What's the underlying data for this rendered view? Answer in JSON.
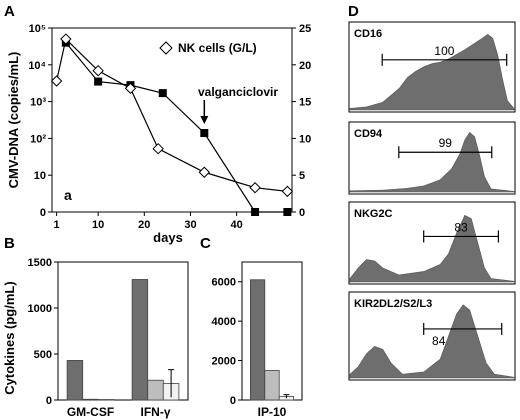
{
  "panels": {
    "A": "A",
    "B": "B",
    "C": "C",
    "D": "D"
  },
  "chart_data": [
    {
      "panel": "A",
      "type": "line",
      "annotation": "a",
      "xlabel": "days",
      "ylabel_left": "CMV-DNA (copies/mL)",
      "ylabel_right": "",
      "y_scale_left": "symlog",
      "x_ticks": [
        1,
        10,
        20,
        30,
        40
      ],
      "y_left_ticks": [
        "0",
        "10",
        "10²",
        "10³",
        "10⁴",
        "10⁵"
      ],
      "y_left_tick_values": [
        0,
        10,
        100,
        1000,
        10000,
        100000
      ],
      "y_right_ticks": [
        0,
        5,
        10,
        15,
        20,
        25
      ],
      "ylim_right": [
        0,
        25
      ],
      "xlim": [
        0,
        52
      ],
      "legend": "NK cells (G/L)",
      "legend_position": "top-right",
      "arrow_label": "valganciclovir",
      "arrow_x": 33,
      "series": [
        {
          "axis": "left",
          "marker": "filled-square",
          "points": [
            [
              3,
              40000
            ],
            [
              10,
              3500
            ],
            [
              17,
              2800
            ],
            [
              24,
              1700
            ],
            [
              33,
              140
            ],
            [
              44,
              0
            ],
            [
              51,
              0
            ]
          ]
        },
        {
          "name": "NK cells (G/L)",
          "axis": "right",
          "marker": "open-diamond",
          "points": [
            [
              1,
              17.8
            ],
            [
              3,
              23.5
            ],
            [
              10,
              19.2
            ],
            [
              17,
              16.8
            ],
            [
              23,
              8.6
            ],
            [
              33,
              5.4
            ],
            [
              44,
              3.3
            ],
            [
              51,
              2.8
            ]
          ]
        }
      ]
    },
    {
      "panel": "B",
      "type": "bar",
      "ylabel": "Cytokines (pg/mL)",
      "categories": [
        "GM-CSF",
        "IFN-γ"
      ],
      "ylim": [
        0,
        1500
      ],
      "y_ticks": [
        0,
        500,
        1000,
        1500
      ],
      "series": [
        {
          "values": [
            430,
            1310
          ],
          "color": "#6e6e6e",
          "err": [
            0,
            0
          ]
        },
        {
          "values": [
            8,
            215
          ],
          "color": "#bdbdbd",
          "err": [
            0,
            0
          ]
        },
        {
          "values": [
            5,
            180
          ],
          "color": "#f2f2f2",
          "err": [
            0,
            150
          ]
        }
      ]
    },
    {
      "panel": "C",
      "type": "bar",
      "categories": [
        "IP-10"
      ],
      "ylim": [
        0,
        7000
      ],
      "y_ticks": [
        0,
        2000,
        4000,
        6000
      ],
      "series": [
        {
          "values": [
            6100
          ],
          "color": "#6e6e6e",
          "err": [
            0
          ]
        },
        {
          "values": [
            1500
          ],
          "color": "#bdbdbd",
          "err": [
            0
          ]
        },
        {
          "values": [
            180
          ],
          "color": "#f2f2f2",
          "err": [
            90
          ]
        }
      ]
    },
    {
      "panel": "D",
      "type": "area",
      "histograms": [
        {
          "label": "CD16",
          "gate_value": "100",
          "gate_from": 0.2,
          "gate_to": 0.95,
          "profile": [
            [
              0,
              0.02
            ],
            [
              0.1,
              0.04
            ],
            [
              0.2,
              0.1
            ],
            [
              0.3,
              0.28
            ],
            [
              0.35,
              0.42
            ],
            [
              0.4,
              0.5
            ],
            [
              0.45,
              0.56
            ],
            [
              0.5,
              0.6
            ],
            [
              0.55,
              0.62
            ],
            [
              0.6,
              0.66
            ],
            [
              0.65,
              0.72
            ],
            [
              0.7,
              0.78
            ],
            [
              0.75,
              0.85
            ],
            [
              0.8,
              0.92
            ],
            [
              0.84,
              0.98
            ],
            [
              0.87,
              0.93
            ],
            [
              0.9,
              0.72
            ],
            [
              0.93,
              0.4
            ],
            [
              0.96,
              0.12
            ],
            [
              1,
              0.02
            ]
          ]
        },
        {
          "label": "CD94",
          "gate_value": "99",
          "gate_from": 0.3,
          "gate_to": 0.86,
          "profile": [
            [
              0,
              0.02
            ],
            [
              0.2,
              0.03
            ],
            [
              0.35,
              0.06
            ],
            [
              0.45,
              0.1
            ],
            [
              0.55,
              0.2
            ],
            [
              0.62,
              0.38
            ],
            [
              0.67,
              0.62
            ],
            [
              0.7,
              0.85
            ],
            [
              0.73,
              0.97
            ],
            [
              0.76,
              0.9
            ],
            [
              0.79,
              0.6
            ],
            [
              0.82,
              0.25
            ],
            [
              0.86,
              0.05
            ],
            [
              1,
              0.01
            ]
          ]
        },
        {
          "label": "NKG2C",
          "gate_value": "83",
          "gate_from": 0.45,
          "gate_to": 0.9,
          "profile": [
            [
              0,
              0.05
            ],
            [
              0.05,
              0.2
            ],
            [
              0.1,
              0.32
            ],
            [
              0.15,
              0.3
            ],
            [
              0.2,
              0.2
            ],
            [
              0.3,
              0.1
            ],
            [
              0.45,
              0.15
            ],
            [
              0.55,
              0.25
            ],
            [
              0.6,
              0.4
            ],
            [
              0.65,
              0.7
            ],
            [
              0.7,
              0.95
            ],
            [
              0.74,
              0.9
            ],
            [
              0.78,
              0.55
            ],
            [
              0.82,
              0.2
            ],
            [
              0.86,
              0.05
            ],
            [
              1,
              0.01
            ]
          ]
        },
        {
          "label": "KIR2DL2/S2/L3",
          "gate_value": "84",
          "gate_from": 0.45,
          "gate_to": 0.92,
          "profile": [
            [
              0,
              0.05
            ],
            [
              0.05,
              0.15
            ],
            [
              0.1,
              0.32
            ],
            [
              0.15,
              0.42
            ],
            [
              0.2,
              0.38
            ],
            [
              0.25,
              0.2
            ],
            [
              0.32,
              0.05
            ],
            [
              0.45,
              0.08
            ],
            [
              0.55,
              0.25
            ],
            [
              0.6,
              0.55
            ],
            [
              0.65,
              0.85
            ],
            [
              0.69,
              0.97
            ],
            [
              0.73,
              0.9
            ],
            [
              0.78,
              0.55
            ],
            [
              0.83,
              0.2
            ],
            [
              0.88,
              0.05
            ],
            [
              1,
              0.01
            ]
          ]
        }
      ]
    }
  ]
}
